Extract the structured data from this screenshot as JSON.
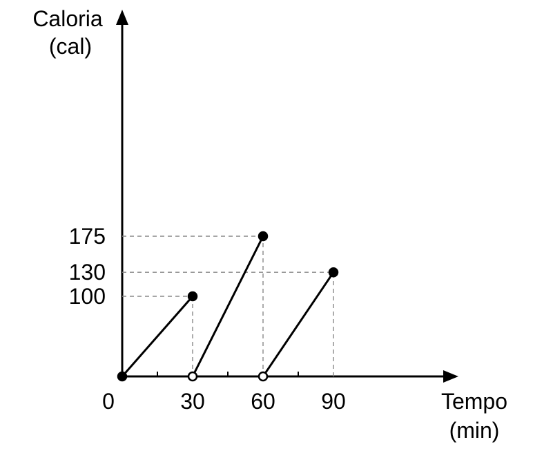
{
  "chart_data": {
    "type": "line",
    "ylabel_lines": [
      "Caloria",
      "(cal)"
    ],
    "xlabel_lines": [
      "Tempo",
      "(min)"
    ],
    "origin_label": "0",
    "x_ticks": [
      {
        "value": 30,
        "label": "30"
      },
      {
        "value": 60,
        "label": "60"
      },
      {
        "value": 90,
        "label": "90"
      }
    ],
    "x_minor_ticks": [
      15,
      45,
      75
    ],
    "y_ticks": [
      {
        "value": 100,
        "label": "100"
      },
      {
        "value": 130,
        "label": "130"
      },
      {
        "value": 175,
        "label": "175"
      }
    ],
    "series": [
      {
        "x": [
          0,
          30
        ],
        "y": [
          0,
          100
        ],
        "start": "closed",
        "end": "closed"
      },
      {
        "x": [
          30,
          60
        ],
        "y": [
          0,
          175
        ],
        "start": "open",
        "end": "closed"
      },
      {
        "x": [
          60,
          90
        ],
        "y": [
          0,
          130
        ],
        "start": "open",
        "end": "closed"
      }
    ],
    "colors": {
      "line": "#000000",
      "guide": "#888888",
      "open_fill": "#ffffff"
    }
  }
}
